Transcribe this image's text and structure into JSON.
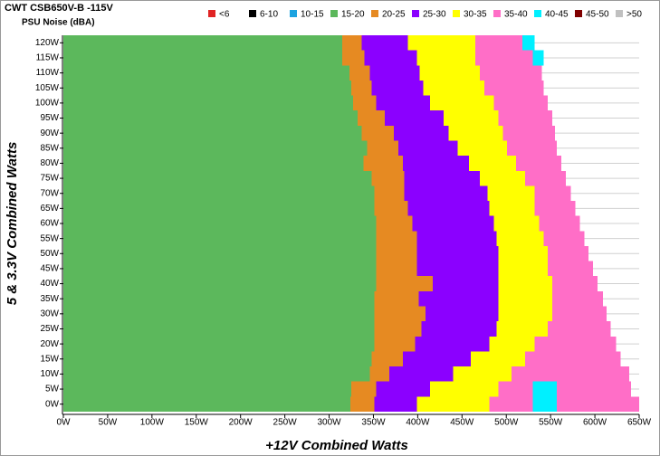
{
  "chart_data": {
    "type": "noise-map",
    "title": "CWT CSB650V-B -115V",
    "subtitle": "PSU Noise (dBA)",
    "x_label": "+12V Combined Watts",
    "y_label": "5 & 3.3V Combined Watts",
    "xlim": [
      0,
      650
    ],
    "ylim": [
      -2.5,
      122.5
    ],
    "xticks": [
      {
        "value": 0,
        "label": "0W"
      },
      {
        "value": 50,
        "label": "50W"
      },
      {
        "value": 100,
        "label": "100W"
      },
      {
        "value": 150,
        "label": "150W"
      },
      {
        "value": 200,
        "label": "200W"
      },
      {
        "value": 250,
        "label": "250W"
      },
      {
        "value": 300,
        "label": "300W"
      },
      {
        "value": 350,
        "label": "350W"
      },
      {
        "value": 400,
        "label": "400W"
      },
      {
        "value": 450,
        "label": "450W"
      },
      {
        "value": 500,
        "label": "500W"
      },
      {
        "value": 550,
        "label": "550W"
      },
      {
        "value": 600,
        "label": "600W"
      },
      {
        "value": 650,
        "label": "650W"
      }
    ],
    "yticks": [
      {
        "value": 0,
        "label": "0W"
      },
      {
        "value": 5,
        "label": "5W"
      },
      {
        "value": 10,
        "label": "10W"
      },
      {
        "value": 15,
        "label": "15W"
      },
      {
        "value": 20,
        "label": "20W"
      },
      {
        "value": 25,
        "label": "25W"
      },
      {
        "value": 30,
        "label": "30W"
      },
      {
        "value": 35,
        "label": "35W"
      },
      {
        "value": 40,
        "label": "40W"
      },
      {
        "value": 45,
        "label": "45W"
      },
      {
        "value": 50,
        "label": "50W"
      },
      {
        "value": 55,
        "label": "55W"
      },
      {
        "value": 60,
        "label": "60W"
      },
      {
        "value": 65,
        "label": "65W"
      },
      {
        "value": 70,
        "label": "70W"
      },
      {
        "value": 75,
        "label": "75W"
      },
      {
        "value": 80,
        "label": "80W"
      },
      {
        "value": 85,
        "label": "85W"
      },
      {
        "value": 90,
        "label": "90W"
      },
      {
        "value": 95,
        "label": "95W"
      },
      {
        "value": 100,
        "label": "100W"
      },
      {
        "value": 105,
        "label": "105W"
      },
      {
        "value": 110,
        "label": "110W"
      },
      {
        "value": 115,
        "label": "115W"
      },
      {
        "value": 120,
        "label": "120W"
      }
    ],
    "grid": true,
    "series": [
      {
        "name": "<6",
        "color": "#e02424",
        "segments": []
      },
      {
        "name": "6-10",
        "color": "#000000",
        "segments": []
      },
      {
        "name": "10-15",
        "color": "#1ca3e0",
        "segments": []
      },
      {
        "name": "15-20",
        "color": "#5cb85c",
        "segments": [
          [
            120,
            0,
            315
          ],
          [
            115,
            0,
            315
          ],
          [
            110,
            0,
            323
          ],
          [
            105,
            0,
            325
          ],
          [
            100,
            0,
            327
          ],
          [
            95,
            0,
            332
          ],
          [
            90,
            0,
            337
          ],
          [
            85,
            0,
            343
          ],
          [
            80,
            0,
            339
          ],
          [
            75,
            0,
            348
          ],
          [
            70,
            0,
            351
          ],
          [
            65,
            0,
            351
          ],
          [
            60,
            0,
            353
          ],
          [
            55,
            0,
            353
          ],
          [
            50,
            0,
            353
          ],
          [
            45,
            0,
            353
          ],
          [
            40,
            0,
            353
          ],
          [
            35,
            0,
            351
          ],
          [
            30,
            0,
            351
          ],
          [
            25,
            0,
            351
          ],
          [
            20,
            0,
            351
          ],
          [
            15,
            0,
            348
          ],
          [
            10,
            0,
            346
          ],
          [
            5,
            0,
            325
          ],
          [
            0,
            0,
            324
          ]
        ]
      },
      {
        "name": "20-25",
        "color": "#e68a22",
        "segments": [
          [
            120,
            315,
            337
          ],
          [
            115,
            315,
            340
          ],
          [
            110,
            323,
            346
          ],
          [
            105,
            325,
            348
          ],
          [
            100,
            327,
            353
          ],
          [
            95,
            332,
            363
          ],
          [
            90,
            337,
            373
          ],
          [
            85,
            343,
            378
          ],
          [
            80,
            339,
            383
          ],
          [
            75,
            348,
            385
          ],
          [
            70,
            351,
            385
          ],
          [
            65,
            351,
            389
          ],
          [
            60,
            353,
            394
          ],
          [
            55,
            353,
            399
          ],
          [
            50,
            353,
            399
          ],
          [
            45,
            353,
            399
          ],
          [
            40,
            353,
            417
          ],
          [
            35,
            351,
            401
          ],
          [
            30,
            351,
            409
          ],
          [
            25,
            351,
            404
          ],
          [
            20,
            351,
            397
          ],
          [
            15,
            348,
            383
          ],
          [
            10,
            346,
            368
          ],
          [
            5,
            325,
            353
          ],
          [
            0,
            324,
            351
          ]
        ]
      },
      {
        "name": "25-30",
        "color": "#8b00ff",
        "segments": [
          [
            120,
            337,
            389
          ],
          [
            115,
            340,
            399
          ],
          [
            110,
            346,
            402
          ],
          [
            105,
            348,
            406
          ],
          [
            100,
            353,
            414
          ],
          [
            95,
            363,
            429
          ],
          [
            90,
            373,
            435
          ],
          [
            85,
            378,
            445
          ],
          [
            80,
            383,
            458
          ],
          [
            75,
            385,
            470
          ],
          [
            70,
            385,
            479
          ],
          [
            65,
            389,
            481
          ],
          [
            60,
            394,
            486
          ],
          [
            55,
            399,
            489
          ],
          [
            50,
            399,
            491
          ],
          [
            45,
            399,
            491
          ],
          [
            40,
            417,
            491
          ],
          [
            35,
            401,
            491
          ],
          [
            30,
            409,
            491
          ],
          [
            25,
            404,
            489
          ],
          [
            20,
            397,
            481
          ],
          [
            15,
            383,
            460
          ],
          [
            10,
            368,
            440
          ],
          [
            5,
            353,
            414
          ],
          [
            0,
            351,
            399
          ]
        ]
      },
      {
        "name": "30-35",
        "color": "#ffff00",
        "segments": [
          [
            120,
            389,
            465
          ],
          [
            115,
            399,
            465
          ],
          [
            110,
            402,
            470
          ],
          [
            105,
            406,
            475
          ],
          [
            100,
            414,
            486
          ],
          [
            95,
            429,
            491
          ],
          [
            90,
            435,
            496
          ],
          [
            85,
            445,
            501
          ],
          [
            80,
            458,
            511
          ],
          [
            75,
            470,
            521
          ],
          [
            70,
            479,
            532
          ],
          [
            65,
            481,
            532
          ],
          [
            60,
            486,
            537
          ],
          [
            55,
            489,
            542
          ],
          [
            50,
            491,
            547
          ],
          [
            45,
            491,
            547
          ],
          [
            40,
            491,
            552
          ],
          [
            35,
            491,
            552
          ],
          [
            30,
            491,
            552
          ],
          [
            25,
            489,
            547
          ],
          [
            20,
            481,
            532
          ],
          [
            15,
            460,
            521
          ],
          [
            10,
            440,
            506
          ],
          [
            5,
            414,
            491
          ],
          [
            0,
            399,
            481
          ]
        ]
      },
      {
        "name": "35-40",
        "color": "#ff6ec7",
        "segments": [
          [
            120,
            465,
            518
          ],
          [
            115,
            465,
            530
          ],
          [
            110,
            470,
            540
          ],
          [
            105,
            475,
            542
          ],
          [
            100,
            486,
            547
          ],
          [
            95,
            491,
            552
          ],
          [
            90,
            496,
            555
          ],
          [
            85,
            501,
            557
          ],
          [
            80,
            511,
            562
          ],
          [
            75,
            521,
            567
          ],
          [
            70,
            532,
            573
          ],
          [
            65,
            532,
            578
          ],
          [
            60,
            537,
            583
          ],
          [
            55,
            542,
            588
          ],
          [
            50,
            547,
            593
          ],
          [
            45,
            547,
            598
          ],
          [
            40,
            552,
            603
          ],
          [
            35,
            552,
            609
          ],
          [
            30,
            552,
            613
          ],
          [
            25,
            547,
            618
          ],
          [
            20,
            532,
            624
          ],
          [
            15,
            521,
            629
          ],
          [
            10,
            506,
            639
          ],
          [
            5,
            491,
            530
          ],
          [
            5,
            557,
            641
          ],
          [
            0,
            481,
            530
          ],
          [
            0,
            557,
            650
          ]
        ]
      },
      {
        "name": "40-45",
        "color": "#00f0ff",
        "segments": [
          [
            120,
            518,
            532
          ],
          [
            115,
            530,
            542
          ],
          [
            5,
            530,
            557
          ],
          [
            0,
            530,
            557
          ]
        ]
      },
      {
        "name": "45-50",
        "color": "#800000",
        "segments": []
      },
      {
        "name": ">50",
        "color": "#c0c0c0",
        "segments": []
      }
    ]
  }
}
